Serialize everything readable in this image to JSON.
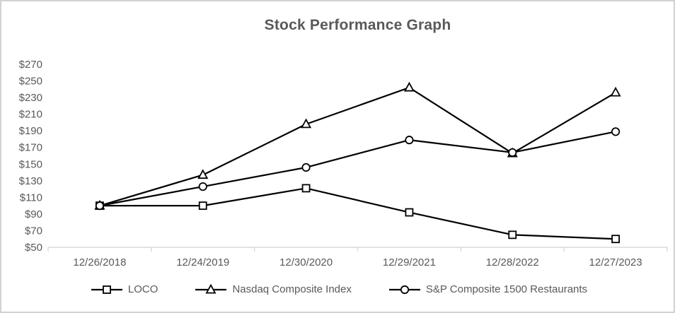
{
  "window": {
    "background": "#ffffff",
    "border_color": "#d2d2d2"
  },
  "chart_data": {
    "type": "line",
    "title": "Stock Performance Graph",
    "categories": [
      "12/26/2018",
      "12/24/2019",
      "12/30/2020",
      "12/29/2021",
      "12/28/2022",
      "12/27/2023"
    ],
    "series": [
      {
        "name": "LOCO",
        "marker": "square",
        "values": [
          100,
          100,
          121,
          92,
          65,
          60
        ]
      },
      {
        "name": "Nasdaq Composite Index",
        "marker": "triangle",
        "values": [
          100,
          137,
          198,
          242,
          163,
          236
        ]
      },
      {
        "name": "S&P Composite 1500 Restaurants",
        "marker": "circle",
        "values": [
          100,
          123,
          146,
          179,
          164,
          189
        ]
      }
    ],
    "ylim": [
      50,
      270
    ],
    "ytick_step": 20,
    "ytick_labels": [
      "$50",
      "$70",
      "$90",
      "$110",
      "$130",
      "$150",
      "$170",
      "$190",
      "$210",
      "$230",
      "$250",
      "$270"
    ],
    "grid": false,
    "legend_position": "bottom",
    "line_color": "#000000",
    "marker_fill": "#ffffff",
    "axis_line_color": "#d9d9d9",
    "text_color": "#595959",
    "title_color": "#595959"
  }
}
